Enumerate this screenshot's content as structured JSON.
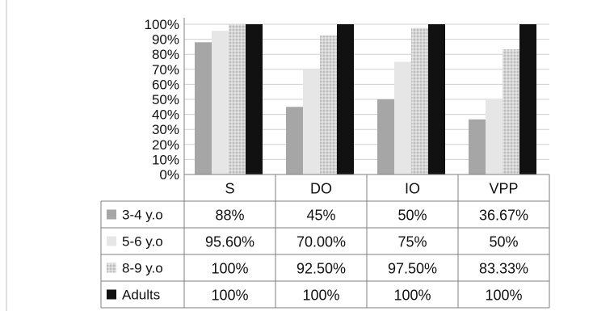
{
  "chart_data": {
    "type": "bar",
    "categories": [
      "S",
      "DO",
      "IO",
      "VPP"
    ],
    "ylim": [
      0,
      100
    ],
    "y_ticks": [
      "0%",
      "10%",
      "20%",
      "30%",
      "40%",
      "50%",
      "60%",
      "70%",
      "80%",
      "90%",
      "100%"
    ],
    "grid": true,
    "legend_placement": "data table (left column)",
    "series": [
      {
        "name": "3-4 y.o",
        "values": [
          88,
          45,
          50,
          36.67
        ],
        "labels": [
          "88%",
          "45%",
          "50%",
          "36.67%"
        ],
        "color": "#a6a6a6",
        "pattern": "solid"
      },
      {
        "name": "5-6 y.o",
        "values": [
          95.6,
          70,
          75,
          50
        ],
        "labels": [
          "95.60%",
          "70.00%",
          "75%",
          "50%"
        ],
        "color": "#e6e6e6",
        "pattern": "solid"
      },
      {
        "name": "8-9 y.o",
        "values": [
          100,
          92.5,
          97.5,
          83.33
        ],
        "labels": [
          "100%",
          "92.50%",
          "97.50%",
          "83.33%"
        ],
        "color": "#cfcfcf",
        "pattern": "hatched"
      },
      {
        "name": "Adults",
        "values": [
          100,
          100,
          100,
          100
        ],
        "labels": [
          "100%",
          "100%",
          "100%",
          "100%"
        ],
        "color": "#111111",
        "pattern": "solid"
      }
    ]
  }
}
